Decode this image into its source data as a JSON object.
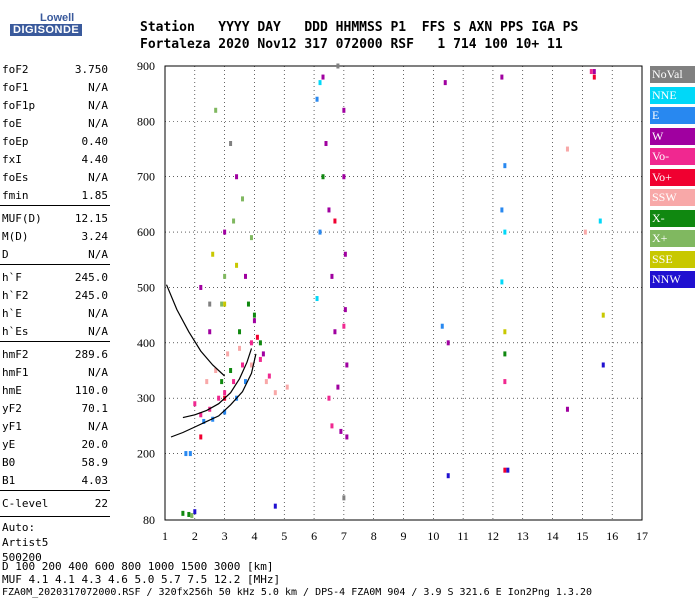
{
  "logo": {
    "top": "Lowell",
    "bottom": "DIGISONDE"
  },
  "header": {
    "row1": "Station   YYYY DAY   DDD HHMMSS P1  FFS S AXN PPS IGA PS",
    "row2": "Fortaleza 2020 Nov12 317 072000 RSF   1 714 100 10+ 11"
  },
  "params": [
    {
      "k": "foF2",
      "v": "3.750"
    },
    {
      "k": "foF1",
      "v": "N/A"
    },
    {
      "k": "foF1p",
      "v": "N/A"
    },
    {
      "k": "foE",
      "v": "N/A"
    },
    {
      "k": "foEp",
      "v": "0.40"
    },
    {
      "k": "fxI",
      "v": "4.40"
    },
    {
      "k": "foEs",
      "v": "N/A"
    },
    {
      "k": "fmin",
      "v": "1.85"
    },
    {
      "k": "MUF(D)",
      "v": "12.15"
    },
    {
      "k": "M(D)",
      "v": "3.24"
    },
    {
      "k": "D",
      "v": "N/A"
    },
    {
      "k": "h`F",
      "v": "245.0"
    },
    {
      "k": "h`F2",
      "v": "245.0"
    },
    {
      "k": "h`E",
      "v": "N/A"
    },
    {
      "k": "h`Es",
      "v": "N/A"
    },
    {
      "k": "hmF2",
      "v": "289.6"
    },
    {
      "k": "hmF1",
      "v": "N/A"
    },
    {
      "k": "hmE",
      "v": "110.0"
    },
    {
      "k": "yF2",
      "v": "70.1"
    },
    {
      "k": "yF1",
      "v": "N/A"
    },
    {
      "k": "yE",
      "v": "20.0"
    },
    {
      "k": "B0",
      "v": "58.9"
    },
    {
      "k": "B1",
      "v": "4.03"
    },
    {
      "k": "C-level",
      "v": "22"
    }
  ],
  "auto": [
    "Auto:",
    "Artist5",
    "500200"
  ],
  "legend": [
    {
      "label": "NoVal",
      "color": "#808080"
    },
    {
      "label": "NNE",
      "color": "#00d8f8"
    },
    {
      "label": "E",
      "color": "#2888f0"
    },
    {
      "label": "W",
      "color": "#a000a0"
    },
    {
      "label": "Vo-",
      "color": "#f02890"
    },
    {
      "label": "Vo+",
      "color": "#f00030"
    },
    {
      "label": "SSW",
      "color": "#f8a8a8"
    },
    {
      "label": "X-",
      "color": "#108810"
    },
    {
      "label": "X+",
      "color": "#80b860"
    },
    {
      "label": "SSE",
      "color": "#c8c800"
    },
    {
      "label": "NNW",
      "color": "#2010d0"
    }
  ],
  "footer": {
    "row1": "D     100  200  400  600  800 1000 1500 3000 [km]",
    "row2": "MUF   4.1  4.1  4.3  4.6  5.0  5.7  7.5 12.2 [MHz]",
    "row3": "FZA0M_2020317072000.RSF / 320fx256h 50 kHz 5.0 km / DPS-4 FZA0M 904 / 3.9 S 321.6 E   Ion2Png 1.3.20"
  },
  "chart_data": {
    "type": "scatter",
    "xlim": [
      1,
      17
    ],
    "ylim": [
      80,
      900
    ],
    "xticks": [
      1,
      2,
      3,
      4,
      5,
      6,
      7,
      8,
      9,
      10,
      11,
      12,
      13,
      14,
      15,
      16,
      17
    ],
    "yticks": [
      80,
      200,
      300,
      400,
      500,
      600,
      700,
      800,
      900
    ],
    "grid": true,
    "series": [
      {
        "color": "#a000a0",
        "points": [
          [
            6.3,
            880
          ],
          [
            6.4,
            760
          ],
          [
            6.5,
            640
          ],
          [
            6.6,
            520
          ],
          [
            6.7,
            420
          ],
          [
            6.8,
            320
          ],
          [
            6.9,
            240
          ],
          [
            7.0,
            820
          ],
          [
            7.0,
            700
          ],
          [
            7.05,
            560
          ],
          [
            7.05,
            460
          ],
          [
            7.1,
            360
          ],
          [
            7.1,
            230
          ],
          [
            2.2,
            500
          ],
          [
            2.5,
            420
          ],
          [
            3.0,
            600
          ],
          [
            3.4,
            700
          ],
          [
            3.7,
            520
          ],
          [
            4.0,
            440
          ],
          [
            4.3,
            380
          ],
          [
            10.4,
            870
          ],
          [
            10.5,
            400
          ],
          [
            12.3,
            880
          ],
          [
            14.5,
            280
          ],
          [
            15.4,
            890
          ]
        ]
      },
      {
        "color": "#f02890",
        "points": [
          [
            2.0,
            290
          ],
          [
            2.2,
            270
          ],
          [
            2.5,
            280
          ],
          [
            2.8,
            300
          ],
          [
            3.0,
            310
          ],
          [
            3.3,
            330
          ],
          [
            3.6,
            360
          ],
          [
            3.9,
            400
          ],
          [
            4.2,
            370
          ],
          [
            4.5,
            340
          ],
          [
            6.5,
            300
          ],
          [
            6.6,
            250
          ],
          [
            7.0,
            430
          ],
          [
            12.4,
            330
          ],
          [
            15.3,
            890
          ]
        ]
      },
      {
        "color": "#108810",
        "points": [
          [
            1.6,
            92
          ],
          [
            1.8,
            90
          ],
          [
            2.9,
            330
          ],
          [
            3.2,
            350
          ],
          [
            3.5,
            420
          ],
          [
            3.8,
            470
          ],
          [
            4.0,
            450
          ],
          [
            4.2,
            400
          ],
          [
            6.3,
            700
          ],
          [
            12.4,
            380
          ]
        ]
      },
      {
        "color": "#2888f0",
        "points": [
          [
            1.7,
            200
          ],
          [
            1.85,
            200
          ],
          [
            2.3,
            258
          ],
          [
            2.6,
            262
          ],
          [
            3.0,
            275
          ],
          [
            3.4,
            300
          ],
          [
            3.7,
            330
          ],
          [
            6.1,
            840
          ],
          [
            6.2,
            600
          ],
          [
            12.3,
            640
          ],
          [
            12.4,
            720
          ],
          [
            10.3,
            430
          ]
        ]
      },
      {
        "color": "#00d8f8",
        "points": [
          [
            6.2,
            870
          ],
          [
            12.3,
            510
          ],
          [
            12.4,
            600
          ],
          [
            15.6,
            620
          ],
          [
            6.1,
            480
          ]
        ]
      },
      {
        "color": "#f8a8a8",
        "points": [
          [
            2.4,
            330
          ],
          [
            2.7,
            350
          ],
          [
            3.1,
            380
          ],
          [
            3.5,
            390
          ],
          [
            3.9,
            360
          ],
          [
            4.4,
            330
          ],
          [
            4.7,
            310
          ],
          [
            5.1,
            320
          ],
          [
            14.5,
            750
          ],
          [
            15.1,
            600
          ]
        ]
      },
      {
        "color": "#80b860",
        "points": [
          [
            1.9,
            88
          ],
          [
            3.0,
            520
          ],
          [
            3.3,
            620
          ],
          [
            3.6,
            660
          ],
          [
            2.7,
            820
          ],
          [
            2.9,
            470
          ],
          [
            3.9,
            590
          ]
        ]
      },
      {
        "color": "#c8c800",
        "points": [
          [
            2.6,
            560
          ],
          [
            3.0,
            470
          ],
          [
            3.4,
            540
          ],
          [
            12.4,
            420
          ],
          [
            15.7,
            450
          ]
        ]
      },
      {
        "color": "#f00030",
        "points": [
          [
            2.2,
            230
          ],
          [
            3.0,
            300
          ],
          [
            4.1,
            410
          ],
          [
            6.7,
            620
          ],
          [
            12.4,
            170
          ],
          [
            15.4,
            880
          ]
        ]
      },
      {
        "color": "#2010d0",
        "points": [
          [
            2.0,
            95
          ],
          [
            4.7,
            105
          ],
          [
            10.5,
            160
          ],
          [
            15.7,
            360
          ],
          [
            12.5,
            170
          ]
        ]
      },
      {
        "color": "#808080",
        "points": [
          [
            2.5,
            470
          ],
          [
            3.2,
            760
          ],
          [
            6.8,
            900
          ],
          [
            7.0,
            120
          ]
        ]
      }
    ],
    "curves": [
      {
        "name": "",
        "color": "#000000",
        "points": [
          [
            1.2,
            230
          ],
          [
            1.6,
            238
          ],
          [
            2.0,
            248
          ],
          [
            2.4,
            258
          ],
          [
            2.8,
            268
          ],
          [
            3.2,
            288
          ],
          [
            3.6,
            312
          ],
          [
            3.9,
            345
          ],
          [
            4.05,
            380
          ]
        ]
      },
      {
        "name": "",
        "color": "#000000",
        "points": [
          [
            1.6,
            265
          ],
          [
            2.0,
            270
          ],
          [
            2.4,
            278
          ],
          [
            2.8,
            290
          ],
          [
            3.2,
            310
          ],
          [
            3.5,
            335
          ],
          [
            3.75,
            365
          ],
          [
            3.9,
            390
          ]
        ]
      },
      {
        "name": "",
        "color": "#000000",
        "points": [
          [
            1.05,
            505
          ],
          [
            1.4,
            460
          ],
          [
            1.8,
            420
          ],
          [
            2.2,
            385
          ],
          [
            2.6,
            360
          ],
          [
            3.0,
            340
          ]
        ]
      }
    ]
  }
}
